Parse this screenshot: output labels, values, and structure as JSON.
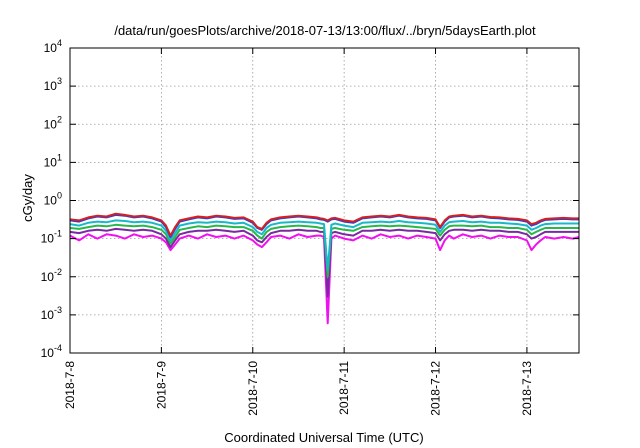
{
  "chart_data": {
    "type": "line",
    "title": "/data/run/goesPlots/archive/2018-07-13/13:00/flux/../bryn/5daysEarth.plot",
    "xlabel": "Coordinated Universal Time (UTC)",
    "ylabel": "cGy/day",
    "yscale": "log",
    "ylim": [
      0.0001,
      10000
    ],
    "xlim": [
      0,
      5.57
    ],
    "grid": true,
    "legend": "none",
    "x_ticks": [
      {
        "value": 0,
        "label": "2018-7-8"
      },
      {
        "value": 1,
        "label": "2018-7-9"
      },
      {
        "value": 2,
        "label": "2018-7-10"
      },
      {
        "value": 3,
        "label": "2018-7-11"
      },
      {
        "value": 4,
        "label": "2018-7-12"
      },
      {
        "value": 5,
        "label": "2018-7-13"
      }
    ],
    "y_ticks": [
      {
        "value": 0.0001,
        "base": "10",
        "exp": "-4"
      },
      {
        "value": 0.001,
        "base": "10",
        "exp": "-3"
      },
      {
        "value": 0.01,
        "base": "10",
        "exp": "-2"
      },
      {
        "value": 0.1,
        "base": "10",
        "exp": "-1"
      },
      {
        "value": 1,
        "base": "10",
        "exp": "0"
      },
      {
        "value": 10,
        "base": "10",
        "exp": "1"
      },
      {
        "value": 100,
        "base": "10",
        "exp": "2"
      },
      {
        "value": 1000,
        "base": "10",
        "exp": "3"
      },
      {
        "value": 10000,
        "base": "10",
        "exp": "4"
      }
    ],
    "x": [
      0,
      0.1,
      0.2,
      0.3,
      0.4,
      0.5,
      0.6,
      0.7,
      0.8,
      0.9,
      1.0,
      1.05,
      1.1,
      1.15,
      1.2,
      1.3,
      1.4,
      1.5,
      1.6,
      1.7,
      1.8,
      1.9,
      2.0,
      2.05,
      2.1,
      2.15,
      2.2,
      2.3,
      2.4,
      2.5,
      2.6,
      2.7,
      2.74,
      2.78,
      2.82,
      2.86,
      2.9,
      3.0,
      3.1,
      3.2,
      3.3,
      3.4,
      3.5,
      3.6,
      3.7,
      3.8,
      3.9,
      4.0,
      4.05,
      4.1,
      4.15,
      4.2,
      4.3,
      4.4,
      4.5,
      4.6,
      4.7,
      4.8,
      4.9,
      5.0,
      5.05,
      5.1,
      5.15,
      5.2,
      5.3,
      5.4,
      5.5,
      5.57
    ],
    "series": [
      {
        "color": "#d62020",
        "values": [
          0.32,
          0.3,
          0.36,
          0.4,
          0.38,
          0.45,
          0.42,
          0.38,
          0.4,
          0.36,
          0.3,
          0.22,
          0.12,
          0.2,
          0.3,
          0.34,
          0.38,
          0.36,
          0.4,
          0.38,
          0.35,
          0.36,
          0.28,
          0.2,
          0.18,
          0.26,
          0.32,
          0.36,
          0.38,
          0.4,
          0.38,
          0.36,
          0.34,
          0.33,
          0.3,
          0.34,
          0.35,
          0.3,
          0.28,
          0.36,
          0.38,
          0.4,
          0.38,
          0.42,
          0.38,
          0.36,
          0.35,
          0.32,
          0.2,
          0.3,
          0.38,
          0.4,
          0.42,
          0.38,
          0.4,
          0.37,
          0.36,
          0.34,
          0.33,
          0.3,
          0.24,
          0.26,
          0.3,
          0.33,
          0.34,
          0.35,
          0.34,
          0.34
        ]
      },
      {
        "color": "#2a3fd8",
        "values": [
          0.3,
          0.28,
          0.34,
          0.38,
          0.36,
          0.42,
          0.4,
          0.36,
          0.38,
          0.34,
          0.28,
          0.2,
          0.11,
          0.18,
          0.28,
          0.32,
          0.36,
          0.34,
          0.38,
          0.36,
          0.33,
          0.34,
          0.26,
          0.19,
          0.17,
          0.24,
          0.3,
          0.34,
          0.36,
          0.38,
          0.36,
          0.34,
          0.32,
          0.31,
          0.28,
          0.32,
          0.33,
          0.28,
          0.26,
          0.34,
          0.36,
          0.38,
          0.36,
          0.4,
          0.36,
          0.34,
          0.33,
          0.3,
          0.19,
          0.28,
          0.36,
          0.38,
          0.4,
          0.36,
          0.38,
          0.35,
          0.34,
          0.32,
          0.31,
          0.28,
          0.22,
          0.24,
          0.28,
          0.31,
          0.32,
          0.33,
          0.32,
          0.32
        ]
      },
      {
        "color": "#18b8c8",
        "values": [
          0.24,
          0.22,
          0.26,
          0.28,
          0.27,
          0.3,
          0.29,
          0.27,
          0.28,
          0.26,
          0.22,
          0.16,
          0.09,
          0.14,
          0.22,
          0.25,
          0.27,
          0.26,
          0.28,
          0.27,
          0.25,
          0.26,
          0.2,
          0.15,
          0.13,
          0.19,
          0.23,
          0.26,
          0.27,
          0.28,
          0.27,
          0.26,
          0.25,
          0.24,
          0.015,
          0.23,
          0.25,
          0.22,
          0.2,
          0.26,
          0.27,
          0.28,
          0.27,
          0.29,
          0.27,
          0.26,
          0.25,
          0.23,
          0.15,
          0.22,
          0.27,
          0.28,
          0.29,
          0.27,
          0.28,
          0.26,
          0.26,
          0.25,
          0.24,
          0.22,
          0.17,
          0.19,
          0.22,
          0.24,
          0.25,
          0.25,
          0.25,
          0.25
        ]
      },
      {
        "color": "#28b84a",
        "values": [
          0.19,
          0.18,
          0.2,
          0.22,
          0.21,
          0.23,
          0.22,
          0.21,
          0.22,
          0.2,
          0.17,
          0.13,
          0.075,
          0.11,
          0.17,
          0.19,
          0.21,
          0.2,
          0.22,
          0.21,
          0.2,
          0.2,
          0.16,
          0.12,
          0.1,
          0.15,
          0.18,
          0.2,
          0.21,
          0.22,
          0.21,
          0.2,
          0.19,
          0.19,
          0.01,
          0.18,
          0.19,
          0.17,
          0.16,
          0.2,
          0.21,
          0.22,
          0.21,
          0.22,
          0.21,
          0.2,
          0.19,
          0.18,
          0.12,
          0.17,
          0.21,
          0.22,
          0.22,
          0.21,
          0.22,
          0.2,
          0.2,
          0.19,
          0.19,
          0.17,
          0.13,
          0.15,
          0.17,
          0.19,
          0.19,
          0.19,
          0.19,
          0.19
        ]
      },
      {
        "color": "#7a2aa0",
        "values": [
          0.15,
          0.14,
          0.16,
          0.17,
          0.16,
          0.18,
          0.17,
          0.16,
          0.17,
          0.16,
          0.13,
          0.1,
          0.06,
          0.09,
          0.13,
          0.15,
          0.16,
          0.16,
          0.17,
          0.16,
          0.15,
          0.16,
          0.12,
          0.09,
          0.08,
          0.11,
          0.14,
          0.16,
          0.16,
          0.17,
          0.16,
          0.16,
          0.15,
          0.15,
          0.003,
          0.14,
          0.15,
          0.13,
          0.12,
          0.16,
          0.16,
          0.17,
          0.16,
          0.17,
          0.16,
          0.16,
          0.15,
          0.14,
          0.09,
          0.13,
          0.16,
          0.17,
          0.17,
          0.16,
          0.17,
          0.16,
          0.16,
          0.15,
          0.15,
          0.13,
          0.1,
          0.11,
          0.13,
          0.15,
          0.15,
          0.15,
          0.15,
          0.15
        ]
      },
      {
        "color": "#f010f0",
        "values": [
          0.12,
          0.09,
          0.13,
          0.1,
          0.13,
          0.12,
          0.1,
          0.13,
          0.11,
          0.12,
          0.1,
          0.08,
          0.05,
          0.07,
          0.1,
          0.12,
          0.1,
          0.13,
          0.11,
          0.12,
          0.1,
          0.12,
          0.09,
          0.07,
          0.06,
          0.08,
          0.11,
          0.12,
          0.1,
          0.13,
          0.11,
          0.12,
          0.12,
          0.11,
          0.0006,
          0.1,
          0.12,
          0.1,
          0.09,
          0.12,
          0.1,
          0.13,
          0.11,
          0.12,
          0.1,
          0.12,
          0.11,
          0.1,
          0.05,
          0.09,
          0.12,
          0.1,
          0.13,
          0.11,
          0.12,
          0.1,
          0.12,
          0.11,
          0.11,
          0.09,
          0.05,
          0.07,
          0.09,
          0.11,
          0.1,
          0.11,
          0.1,
          0.11
        ]
      }
    ]
  }
}
